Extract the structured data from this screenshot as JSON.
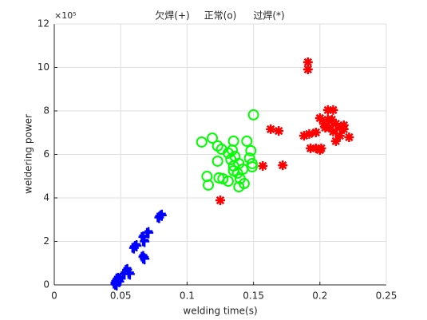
{
  "chart_data": {
    "type": "scatter",
    "x_label": "welding time(s)",
    "y_label": "weldering power",
    "y_exponent_label": "×10⁵",
    "xlim": [
      0,
      0.25
    ],
    "xticks": [
      0,
      0.05,
      0.1,
      0.15,
      0.2,
      0.25
    ],
    "ylim": [
      0,
      1200000
    ],
    "yticks": [
      {
        "value": 0,
        "label": "0"
      },
      {
        "value": 200000,
        "label": "2"
      },
      {
        "value": 400000,
        "label": "4"
      },
      {
        "value": 600000,
        "label": "6"
      },
      {
        "value": 800000,
        "label": "8"
      },
      {
        "value": 1000000,
        "label": "10"
      },
      {
        "value": 1200000,
        "label": "12"
      }
    ],
    "grid": true,
    "series": [
      {
        "name": "欠焊(+)",
        "marker": "+",
        "color": "#0000ff",
        "x": [
          0.046,
          0.047,
          0.048,
          0.046,
          0.049,
          0.053,
          0.055,
          0.057,
          0.06,
          0.062,
          0.067,
          0.068,
          0.067,
          0.068,
          0.071,
          0.079,
          0.081,
          0.047,
          0.05
        ],
        "values": [
          10000,
          20000,
          30000,
          5000,
          15000,
          50000,
          70000,
          50000,
          170000,
          180000,
          130000,
          120000,
          220000,
          200000,
          240000,
          310000,
          320000,
          0,
          30000
        ]
      },
      {
        "name": "正常(o)",
        "marker": "o",
        "color": "#00ff00",
        "x": [
          0.111,
          0.119,
          0.123,
          0.126,
          0.135,
          0.15,
          0.145,
          0.115,
          0.116,
          0.124,
          0.127,
          0.131,
          0.133,
          0.135,
          0.139,
          0.138,
          0.14,
          0.148,
          0.147,
          0.149,
          0.149,
          0.131,
          0.139,
          0.143,
          0.135,
          0.136,
          0.142,
          0.134,
          0.123
        ],
        "values": [
          657000,
          675000,
          639000,
          624000,
          661000,
          782000,
          661000,
          499000,
          459000,
          492000,
          488000,
          606000,
          576000,
          547000,
          558000,
          514000,
          488000,
          617000,
          583000,
          543000,
          558000,
          477000,
          451000,
          466000,
          525000,
          591000,
          532000,
          620000,
          569000
        ]
      },
      {
        "name": "过焊(*)",
        "marker": "*",
        "color": "#ff0000",
        "x": [
          0.191,
          0.191,
          0.163,
          0.169,
          0.157,
          0.172,
          0.125,
          0.188,
          0.192,
          0.197,
          0.2,
          0.203,
          0.206,
          0.21,
          0.204,
          0.209,
          0.212,
          0.215,
          0.218,
          0.21,
          0.215,
          0.218,
          0.222,
          0.212,
          0.193,
          0.197,
          0.2,
          0.201,
          0.207,
          0.206
        ],
        "values": [
          1024000,
          991000,
          716000,
          708000,
          547000,
          550000,
          389000,
          686000,
          694000,
          701000,
          767000,
          741000,
          804000,
          804000,
          723000,
          760000,
          741000,
          723000,
          716000,
          705000,
          686000,
          734000,
          679000,
          661000,
          628000,
          628000,
          620000,
          628000,
          723000,
          760000
        ]
      }
    ]
  }
}
